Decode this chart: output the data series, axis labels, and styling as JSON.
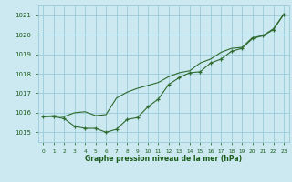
{
  "title": "Graphe pression niveau de la mer (hPa)",
  "bg_color": "#cce8f0",
  "grid_color": "#99ccd9",
  "line_color": "#2d6a2d",
  "text_color": "#1a5c1a",
  "ylim": [
    1014.5,
    1021.5
  ],
  "xlim": [
    -0.5,
    23.5
  ],
  "yticks": [
    1015,
    1016,
    1017,
    1018,
    1019,
    1020,
    1021
  ],
  "xticks": [
    0,
    1,
    2,
    3,
    4,
    5,
    6,
    7,
    8,
    9,
    10,
    11,
    12,
    13,
    14,
    15,
    16,
    17,
    18,
    19,
    20,
    21,
    22,
    23
  ],
  "series_marker_x": [
    0,
    1,
    2,
    3,
    4,
    5,
    6,
    7,
    8,
    9,
    10,
    11,
    12,
    13,
    14,
    15,
    16,
    17,
    18,
    19,
    20,
    21,
    22,
    23
  ],
  "series_marker_y": [
    1015.8,
    1015.8,
    1015.7,
    1015.3,
    1015.2,
    1015.2,
    1015.0,
    1015.15,
    1015.65,
    1015.75,
    1016.3,
    1016.7,
    1017.45,
    1017.8,
    1018.05,
    1018.1,
    1018.55,
    1018.75,
    1019.15,
    1019.3,
    1019.8,
    1019.95,
    1020.25,
    1021.05
  ],
  "series_smooth_x": [
    0,
    1,
    2,
    3,
    4,
    5,
    6,
    7,
    8,
    9,
    10,
    11,
    12,
    13,
    14,
    15,
    16,
    17,
    18,
    19,
    20,
    21,
    22,
    23
  ],
  "series_smooth_y": [
    1015.8,
    1015.85,
    1015.8,
    1016.0,
    1016.05,
    1015.85,
    1015.9,
    1016.75,
    1017.05,
    1017.25,
    1017.4,
    1017.55,
    1017.85,
    1018.05,
    1018.15,
    1018.55,
    1018.75,
    1019.1,
    1019.3,
    1019.35,
    1019.85,
    1019.95,
    1020.3,
    1021.05
  ]
}
